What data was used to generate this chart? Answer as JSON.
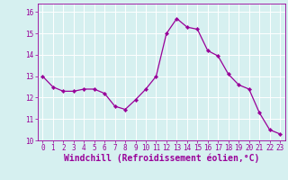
{
  "x": [
    0,
    1,
    2,
    3,
    4,
    5,
    6,
    7,
    8,
    9,
    10,
    11,
    12,
    13,
    14,
    15,
    16,
    17,
    18,
    19,
    20,
    21,
    22,
    23
  ],
  "y": [
    13.0,
    12.5,
    12.3,
    12.3,
    12.4,
    12.4,
    12.2,
    11.6,
    11.45,
    11.9,
    12.4,
    13.0,
    15.0,
    15.7,
    15.3,
    15.2,
    14.2,
    13.95,
    13.1,
    12.6,
    12.4,
    11.3,
    10.5,
    10.3
  ],
  "line_color": "#990099",
  "marker": "D",
  "marker_size": 2.2,
  "bg_color": "#d6f0f0",
  "grid_color": "#ffffff",
  "xlabel": "Windchill (Refroidissement éolien,°C)",
  "xlabel_color": "#990099",
  "title": "",
  "xlim": [
    -0.5,
    23.5
  ],
  "ylim": [
    10,
    16.4
  ],
  "yticks": [
    10,
    11,
    12,
    13,
    14,
    15,
    16
  ],
  "xticks": [
    0,
    1,
    2,
    3,
    4,
    5,
    6,
    7,
    8,
    9,
    10,
    11,
    12,
    13,
    14,
    15,
    16,
    17,
    18,
    19,
    20,
    21,
    22,
    23
  ],
  "tick_color": "#990099",
  "tick_fontsize": 5.5,
  "xlabel_fontsize": 7.0,
  "linewidth": 0.9
}
